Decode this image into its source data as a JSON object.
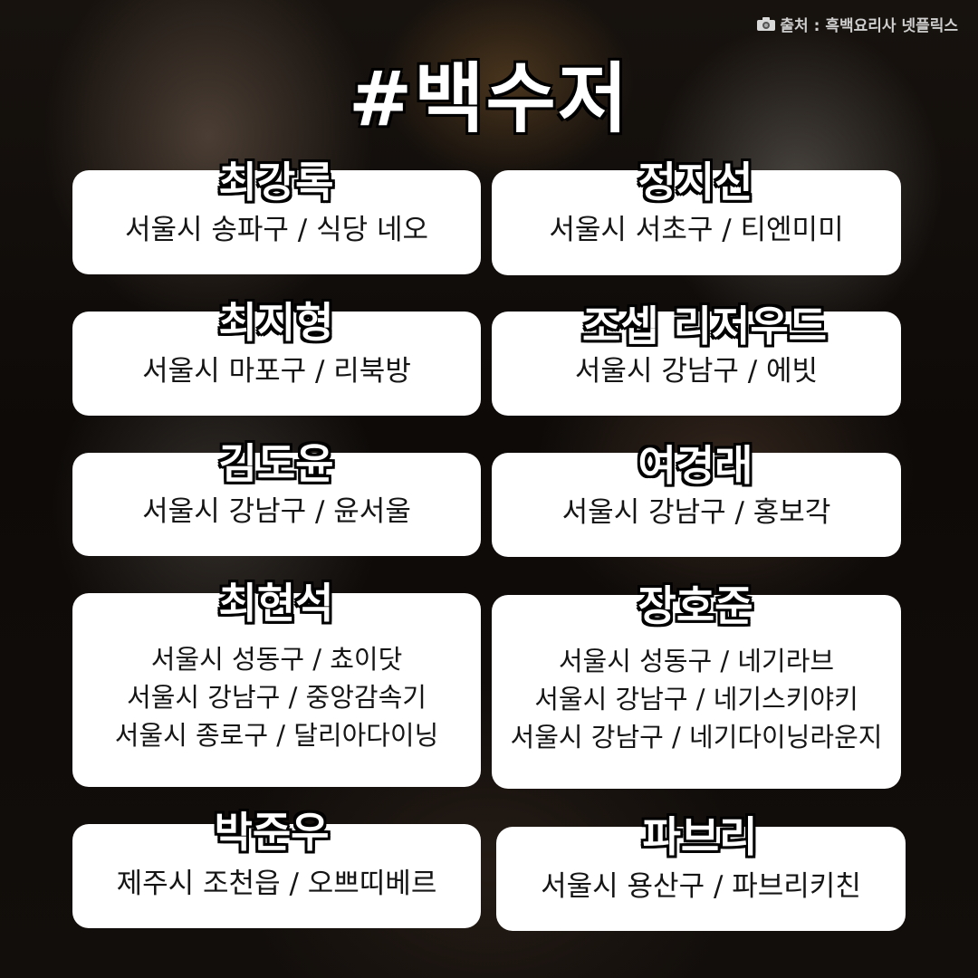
{
  "source_credit": "출처 : 흑백요리사 넷플릭스",
  "title": "#백수저",
  "chefs": [
    {
      "name": "최강록",
      "lines": [
        "서울시 송파구 / 식당 네오"
      ]
    },
    {
      "name": "정지선",
      "lines": [
        "서울시 서초구  / 티엔미미"
      ]
    },
    {
      "name": "최지형",
      "lines": [
        "서울시 마포구 / 리북방"
      ]
    },
    {
      "name": "조셉 리저우드",
      "lines": [
        "서울시 강남구 / 에빗"
      ]
    },
    {
      "name": "김도윤",
      "lines": [
        "서울시 강남구 / 윤서울"
      ]
    },
    {
      "name": "여경래",
      "lines": [
        "서울시 강남구 / 홍보각"
      ]
    },
    {
      "name": "최현석",
      "lines": [
        "서울시 성동구 / 쵸이닷",
        "서울시 강남구 / 중앙감속기",
        "서울시 종로구 / 달리아다이닝"
      ]
    },
    {
      "name": "장호준",
      "lines": [
        "서울시 성동구 / 네기라브",
        "서울시 강남구 / 네기스키야키",
        "서울시 강남구 / 네기다이닝라운지"
      ]
    },
    {
      "name": "박준우",
      "lines": [
        "제주시 조천읍 / 오쁘띠베르"
      ]
    },
    {
      "name": "파브리",
      "lines": [
        "서울시 용산구 / 파브리키친"
      ]
    }
  ]
}
